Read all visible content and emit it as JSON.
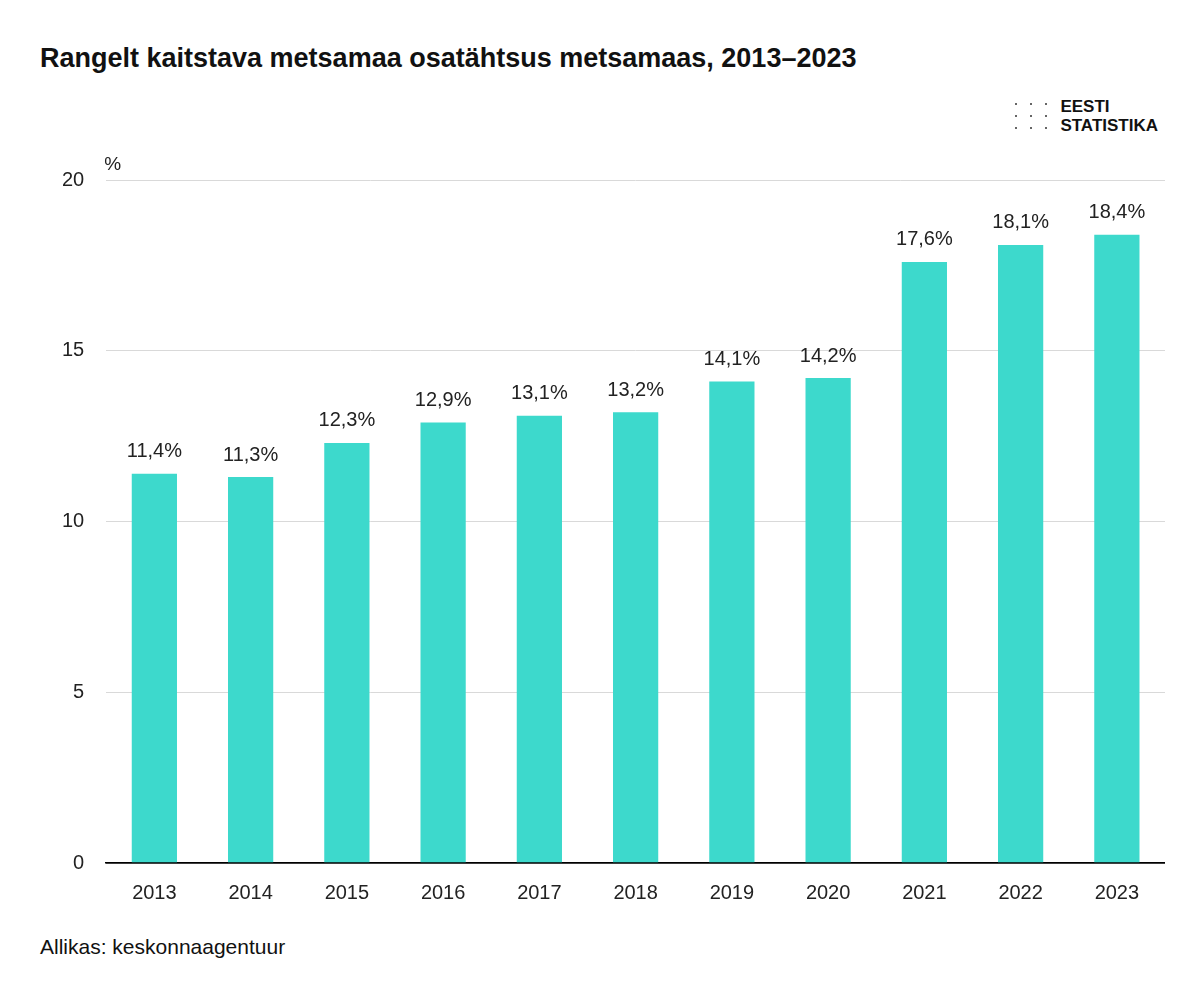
{
  "chart_data": {
    "type": "bar",
    "title": "Rangelt kaitstava metsamaa osatähtsus metsamaas, 2013–2023",
    "y_label": "%",
    "source": "Allikas: keskonnaagentuur",
    "logo": [
      "EESTI",
      "STATISTIKA"
    ],
    "categories": [
      "2013",
      "2014",
      "2015",
      "2016",
      "2017",
      "2018",
      "2019",
      "2020",
      "2021",
      "2022",
      "2023"
    ],
    "values": [
      11.4,
      11.3,
      12.3,
      12.9,
      13.1,
      13.2,
      14.1,
      14.2,
      17.6,
      18.1,
      18.4
    ],
    "value_labels": [
      "11,4%",
      "11,3%",
      "12,3%",
      "12,9%",
      "13,1%",
      "13,2%",
      "14,1%",
      "14,2%",
      "17,6%",
      "18,1%",
      "18,4%"
    ],
    "color": "#3dd9cc",
    "ylim": [
      0,
      20
    ],
    "yticks": [
      0,
      5,
      10,
      15,
      20
    ],
    "grid": true,
    "data_labels": true
  }
}
